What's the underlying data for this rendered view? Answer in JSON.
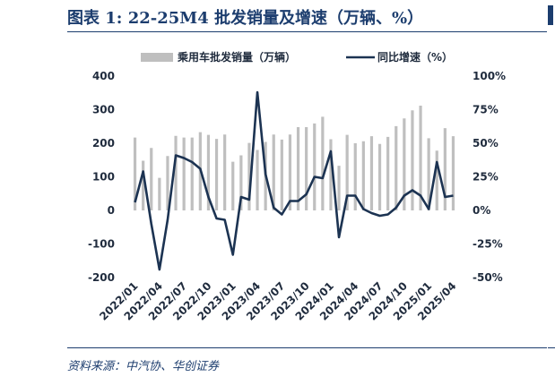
{
  "title": "图表 1:  22-25M4 批发销量及增速（万辆、%）",
  "source": "资料来源：中汽协、华创证券",
  "colors": {
    "bar": "#bfbfbf",
    "line": "#1c3352",
    "accent": "#1c3d6e"
  },
  "chart_data": {
    "type": "bar+line",
    "legend_position": "top",
    "grid": false,
    "x": [
      "2022/01",
      "2022/02",
      "2022/03",
      "2022/04",
      "2022/05",
      "2022/06",
      "2022/07",
      "2022/08",
      "2022/09",
      "2022/10",
      "2022/11",
      "2022/12",
      "2023/01",
      "2023/02",
      "2023/03",
      "2023/04",
      "2023/05",
      "2023/06",
      "2023/07",
      "2023/08",
      "2023/09",
      "2023/10",
      "2023/11",
      "2023/12",
      "2024/01",
      "2024/02",
      "2024/03",
      "2024/04",
      "2024/05",
      "2024/06",
      "2024/07",
      "2024/08",
      "2024/09",
      "2024/10",
      "2024/11",
      "2024/12",
      "2025/01",
      "2025/02",
      "2025/03",
      "2025/04"
    ],
    "x_tick_labels": [
      "2022/01",
      "2022/04",
      "2022/07",
      "2022/10",
      "2023/01",
      "2023/04",
      "2023/07",
      "2023/10",
      "2024/01",
      "2024/04",
      "2024/07",
      "2024/10",
      "2025/01",
      "2025/04"
    ],
    "series": [
      {
        "name": "乘用车批发销量（万辆）",
        "type": "bar",
        "axis": "left",
        "values": [
          217,
          148,
          186,
          97,
          162,
          222,
          217,
          217,
          233,
          225,
          213,
          226,
          145,
          164,
          201,
          180,
          204,
          226,
          211,
          226,
          248,
          248,
          259,
          279,
          212,
          133,
          225,
          200,
          206,
          221,
          198,
          219,
          251,
          274,
          298,
          312,
          215,
          178,
          245,
          221
        ]
      },
      {
        "name": "同比增速（%）",
        "type": "line",
        "axis": "right",
        "values": [
          6,
          29,
          -10,
          -44,
          -7,
          41,
          39,
          36,
          31,
          10,
          -6,
          -7,
          -33,
          10,
          8,
          88,
          27,
          2,
          -3,
          7,
          7,
          12,
          25,
          24,
          44,
          -20,
          11,
          11,
          1,
          -2,
          -4,
          -3,
          2,
          11,
          15,
          11,
          1,
          36,
          10,
          11
        ]
      }
    ],
    "y_left": {
      "ticks": [
        -200,
        -100,
        0,
        100,
        200,
        300,
        400
      ],
      "range": [
        -200,
        400
      ]
    },
    "y_right": {
      "ticks": [
        "-50%",
        "-25%",
        "0%",
        "25%",
        "50%",
        "75%",
        "100%"
      ],
      "range": [
        -50,
        100
      ]
    }
  }
}
